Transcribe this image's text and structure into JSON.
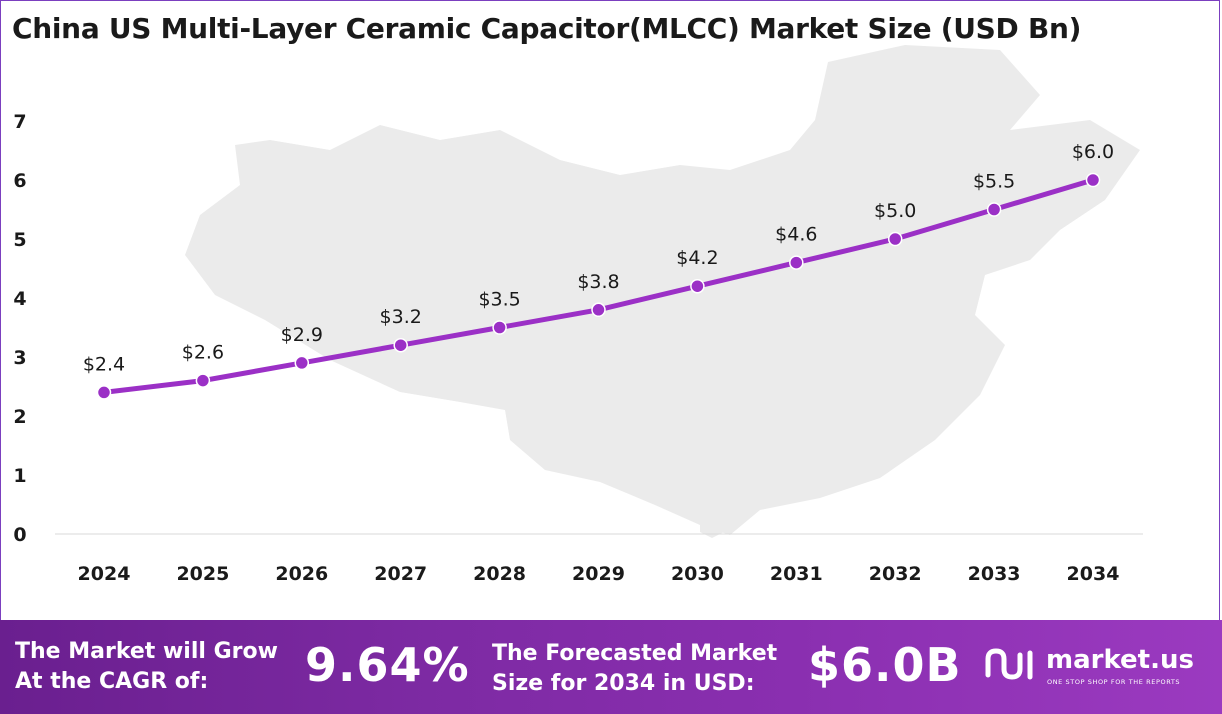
{
  "title": "China US Multi-Layer Ceramic Capacitor(MLCC) Market Size (USD Bn)",
  "chart_data": {
    "type": "line",
    "title": "China US Multi-Layer Ceramic Capacitor(MLCC) Market Size (USD Bn)",
    "categories": [
      "2024",
      "2025",
      "2026",
      "2027",
      "2028",
      "2029",
      "2030",
      "2031",
      "2032",
      "2033",
      "2034"
    ],
    "values": [
      2.4,
      2.6,
      2.9,
      3.2,
      3.5,
      3.8,
      4.2,
      4.6,
      5.0,
      5.5,
      6.0
    ],
    "data_labels": [
      "$2.4",
      "$2.6",
      "$2.9",
      "$3.2",
      "$3.5",
      "$3.8",
      "$4.2",
      "$4.6",
      "$5.0",
      "$5.5",
      "$6.0"
    ],
    "yticks": [
      "0",
      "1",
      "2",
      "3",
      "4",
      "5",
      "6",
      "7"
    ],
    "ylim": [
      0,
      7
    ],
    "xlabel": "",
    "ylabel": "",
    "grid": false,
    "line_color": "#9b30c6"
  },
  "footer": {
    "cagr_label_line1": "The Market will Grow",
    "cagr_label_line2": "At the CAGR of:",
    "cagr_value": "9.64%",
    "forecast_label_line1": "The Forecasted Market",
    "forecast_label_line2": "Size for 2034 in USD:",
    "forecast_value": "$6.0B"
  },
  "logo": {
    "name": "market.us",
    "tagline": "ONE STOP SHOP FOR THE REPORTS"
  },
  "colors": {
    "accent": "#9b30c6",
    "footer": "#7d2aa3"
  }
}
